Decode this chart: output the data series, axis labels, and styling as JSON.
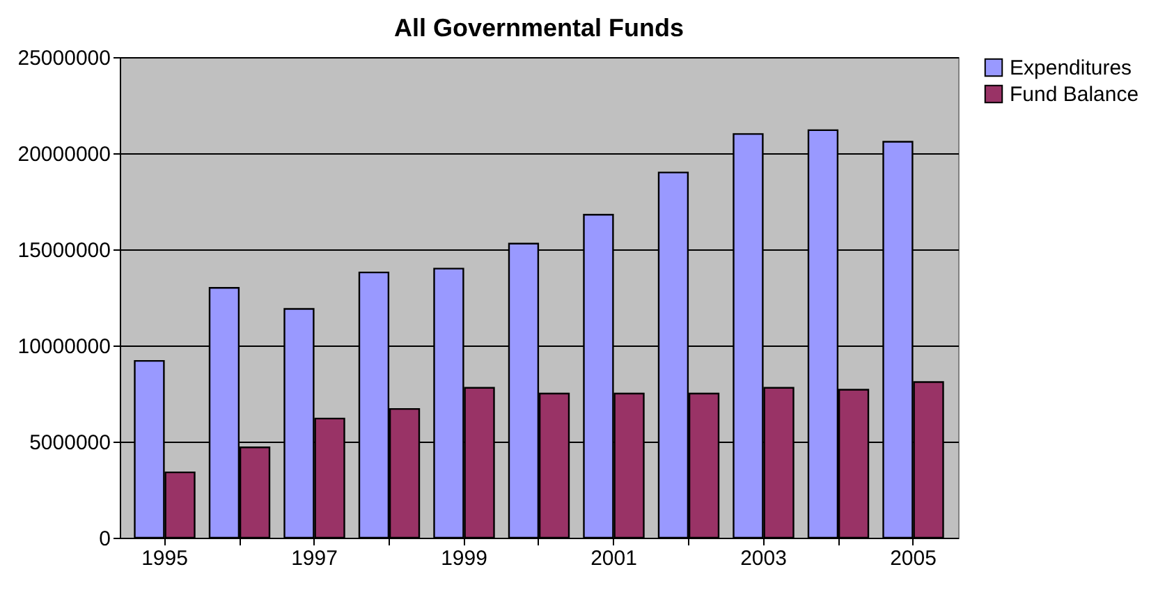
{
  "chart_data": {
    "type": "bar",
    "title": "All Governmental Funds",
    "categories": [
      "1995",
      null,
      "1997",
      null,
      "1999",
      null,
      "2001",
      null,
      "2003",
      null,
      "2005"
    ],
    "series": [
      {
        "name": "Expenditures",
        "color": "#9999ff",
        "values": [
          9200000,
          13000000,
          11900000,
          13800000,
          14000000,
          15300000,
          16800000,
          19000000,
          21000000,
          21200000,
          20600000
        ]
      },
      {
        "name": "Fund Balance",
        "color": "#993366",
        "values": [
          3400000,
          4700000,
          6200000,
          6700000,
          7800000,
          7500000,
          7500000,
          7500000,
          7800000,
          7700000,
          8100000
        ]
      }
    ],
    "ylim": [
      0,
      25000000
    ],
    "yticks": [
      0,
      5000000,
      10000000,
      15000000,
      20000000,
      25000000
    ],
    "grid": "y",
    "legend": "right"
  }
}
